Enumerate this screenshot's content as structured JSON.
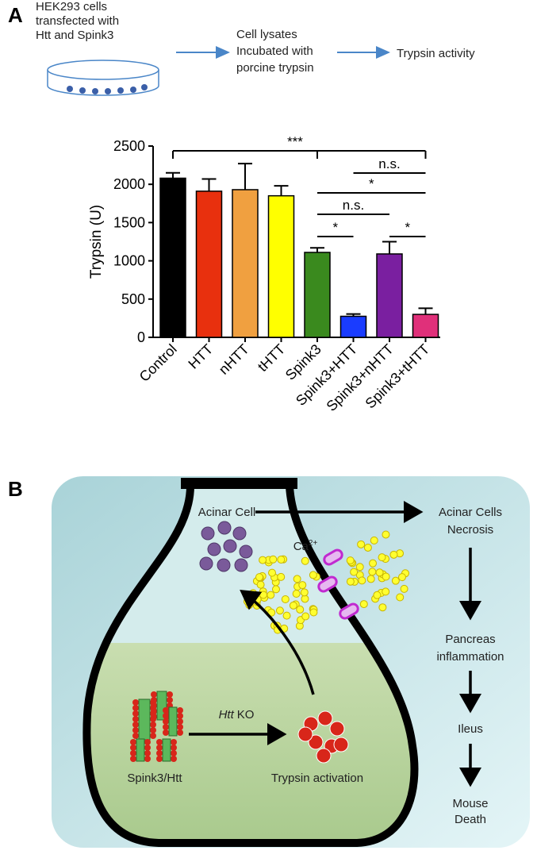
{
  "panel_a": {
    "label": "A",
    "steps": [
      [
        "HEK293 cells",
        "transfected with",
        "Htt and Spink3"
      ],
      [
        "Cell lysates",
        "Incubated with",
        "porcine trypsin"
      ],
      [
        "Trypsin activity"
      ]
    ]
  },
  "chart_data": {
    "type": "bar",
    "y_label": "Trypsin (U)",
    "categories": [
      "Control",
      "HTT",
      "nHTT",
      "tHTT",
      "Spink3",
      "Spink3+HTT",
      "Spink3+nHTT",
      "Spink3+tHTT"
    ],
    "series": [
      {
        "values": [
          2080,
          1910,
          1930,
          1850,
          1110,
          275,
          1090,
          300
        ],
        "errors": [
          70,
          160,
          340,
          130,
          60,
          30,
          160,
          80
        ],
        "colors": [
          "#000000",
          "#e8300e",
          "#f0a040",
          "#ffff00",
          "#3a8a1e",
          "#1a3cff",
          "#7a1fa0",
          "#e0307a"
        ]
      }
    ],
    "ylim": [
      0,
      2500
    ],
    "yticks": [
      0,
      500,
      1000,
      1500,
      2000,
      2500
    ],
    "significance": [
      {
        "label": "***",
        "groups": [
          "Control",
          "Spink3",
          "Spink3+tHTT"
        ]
      },
      {
        "label": "n.s.",
        "groups": [
          "Spink3+HTT",
          "Spink3+tHTT"
        ]
      },
      {
        "label": "*",
        "groups": [
          "Spink3",
          "Spink3+tHTT"
        ]
      },
      {
        "label": "n.s.",
        "groups": [
          "Spink3",
          "Spink3+nHTT"
        ]
      },
      {
        "label": "*",
        "groups": [
          "Spink3",
          "Spink3+HTT"
        ]
      },
      {
        "label": "*",
        "groups": [
          "Spink3+nHTT",
          "Spink3+tHTT"
        ]
      }
    ]
  },
  "panel_b": {
    "label": "B",
    "cell": "Acinar Cell",
    "calcium": {
      "base": "Ca",
      "superscript": "2+"
    },
    "knockout": {
      "italic": "Htt",
      "text": "KO"
    },
    "complex": "Spink3/Htt",
    "activation": "Trypsin activation",
    "outcomes": [
      [
        "Acinar Cells",
        "Necrosis"
      ],
      [
        "Pancreas",
        "inflammation"
      ],
      [
        "Ileus"
      ],
      [
        "Mouse",
        "Death"
      ]
    ]
  }
}
